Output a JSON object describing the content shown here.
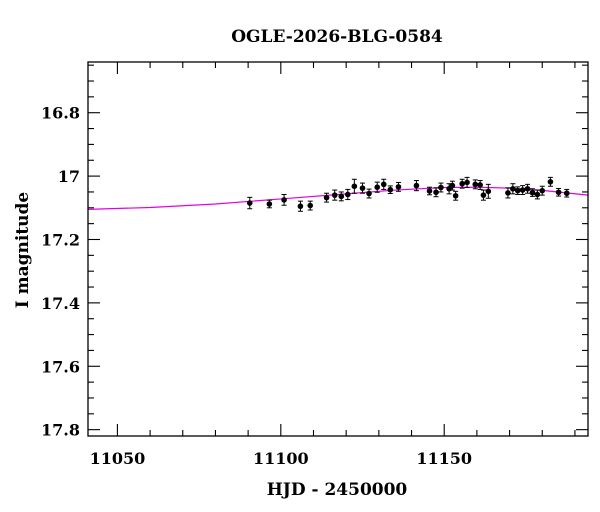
{
  "chart_data": {
    "type": "scatter",
    "title": "OGLE-2026-BLG-0584",
    "xlabel": "HJD - 2450000",
    "ylabel": "I magnitude",
    "xlim": [
      11041,
      11194
    ],
    "ylim": [
      17.82,
      16.64
    ],
    "y_inverted": true,
    "grid": false,
    "x_ticks": [
      "11050",
      "11100",
      "11150"
    ],
    "y_ticks": [
      "16.8",
      "17",
      "17.2",
      "17.4",
      "17.6",
      "17.8"
    ],
    "colors": {
      "points": "#000000",
      "model": "#e400e4",
      "frame": "#000000"
    },
    "series": [
      {
        "type": "scatter",
        "points": [
          {
            "x": 11090.5,
            "y": 17.085,
            "err": 0.018
          },
          {
            "x": 11096.5,
            "y": 17.088,
            "err": 0.012
          },
          {
            "x": 11101.0,
            "y": 17.075,
            "err": 0.017
          },
          {
            "x": 11106.0,
            "y": 17.095,
            "err": 0.016
          },
          {
            "x": 11109.0,
            "y": 17.093,
            "err": 0.014
          },
          {
            "x": 11114.0,
            "y": 17.068,
            "err": 0.014
          },
          {
            "x": 11116.5,
            "y": 17.06,
            "err": 0.016
          },
          {
            "x": 11118.5,
            "y": 17.064,
            "err": 0.014
          },
          {
            "x": 11120.5,
            "y": 17.058,
            "err": 0.016
          },
          {
            "x": 11122.5,
            "y": 17.032,
            "err": 0.022
          },
          {
            "x": 11125.0,
            "y": 17.038,
            "err": 0.016
          },
          {
            "x": 11127.0,
            "y": 17.055,
            "err": 0.014
          },
          {
            "x": 11129.5,
            "y": 17.035,
            "err": 0.016
          },
          {
            "x": 11131.5,
            "y": 17.026,
            "err": 0.016
          },
          {
            "x": 11133.5,
            "y": 17.043,
            "err": 0.012
          },
          {
            "x": 11136.0,
            "y": 17.034,
            "err": 0.014
          },
          {
            "x": 11141.5,
            "y": 17.03,
            "err": 0.016
          },
          {
            "x": 11145.5,
            "y": 17.047,
            "err": 0.012
          },
          {
            "x": 11147.5,
            "y": 17.051,
            "err": 0.014
          },
          {
            "x": 11149.0,
            "y": 17.036,
            "err": 0.014
          },
          {
            "x": 11151.5,
            "y": 17.04,
            "err": 0.016
          },
          {
            "x": 11152.5,
            "y": 17.03,
            "err": 0.014
          },
          {
            "x": 11153.5,
            "y": 17.062,
            "err": 0.014
          },
          {
            "x": 11155.5,
            "y": 17.024,
            "err": 0.014
          },
          {
            "x": 11157.0,
            "y": 17.02,
            "err": 0.016
          },
          {
            "x": 11159.5,
            "y": 17.026,
            "err": 0.014
          },
          {
            "x": 11161.0,
            "y": 17.028,
            "err": 0.014
          },
          {
            "x": 11162.0,
            "y": 17.06,
            "err": 0.016
          },
          {
            "x": 11163.5,
            "y": 17.048,
            "err": 0.022
          },
          {
            "x": 11169.5,
            "y": 17.053,
            "err": 0.016
          },
          {
            "x": 11171.0,
            "y": 17.04,
            "err": 0.016
          },
          {
            "x": 11172.5,
            "y": 17.046,
            "err": 0.012
          },
          {
            "x": 11174.0,
            "y": 17.044,
            "err": 0.014
          },
          {
            "x": 11175.5,
            "y": 17.04,
            "err": 0.014
          },
          {
            "x": 11177.0,
            "y": 17.052,
            "err": 0.012
          },
          {
            "x": 11178.5,
            "y": 17.058,
            "err": 0.014
          },
          {
            "x": 11180.0,
            "y": 17.046,
            "err": 0.014
          },
          {
            "x": 11182.5,
            "y": 17.018,
            "err": 0.014
          },
          {
            "x": 11185.0,
            "y": 17.051,
            "err": 0.012
          },
          {
            "x": 11187.5,
            "y": 17.054,
            "err": 0.012
          }
        ]
      },
      {
        "type": "line",
        "x": [
          11041,
          11060,
          11080,
          11100,
          11120,
          11135,
          11150,
          11160,
          11170,
          11180,
          11194
        ],
        "y": [
          17.105,
          17.099,
          17.088,
          17.072,
          17.056,
          17.044,
          17.036,
          17.035,
          17.038,
          17.045,
          17.06
        ]
      }
    ]
  }
}
